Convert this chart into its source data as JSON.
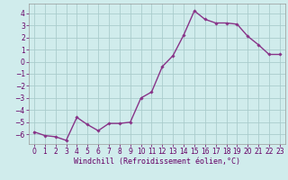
{
  "x": [
    0,
    1,
    2,
    3,
    4,
    5,
    6,
    7,
    8,
    9,
    10,
    11,
    12,
    13,
    14,
    15,
    16,
    17,
    18,
    19,
    20,
    21,
    22,
    23
  ],
  "y": [
    -5.8,
    -6.1,
    -6.2,
    -6.5,
    -4.6,
    -5.2,
    -5.7,
    -5.1,
    -5.1,
    -5.0,
    -3.0,
    -2.5,
    -0.4,
    0.5,
    2.2,
    4.2,
    3.5,
    3.2,
    3.2,
    3.1,
    2.1,
    1.4,
    0.6,
    0.6
  ],
  "line_color": "#883388",
  "marker": "D",
  "marker_size": 1.8,
  "bg_color": "#d0ecec",
  "grid_color": "#aacccc",
  "xlabel": "Windchill (Refroidissement éolien,°C)",
  "xlim": [
    -0.5,
    23.5
  ],
  "ylim": [
    -6.8,
    4.8
  ],
  "yticks": [
    -6,
    -5,
    -4,
    -3,
    -2,
    -1,
    0,
    1,
    2,
    3,
    4
  ],
  "xticks": [
    0,
    1,
    2,
    3,
    4,
    5,
    6,
    7,
    8,
    9,
    10,
    11,
    12,
    13,
    14,
    15,
    16,
    17,
    18,
    19,
    20,
    21,
    22,
    23
  ],
  "tick_fontsize": 5.5,
  "xlabel_fontsize": 6.0,
  "line_width": 1.0
}
